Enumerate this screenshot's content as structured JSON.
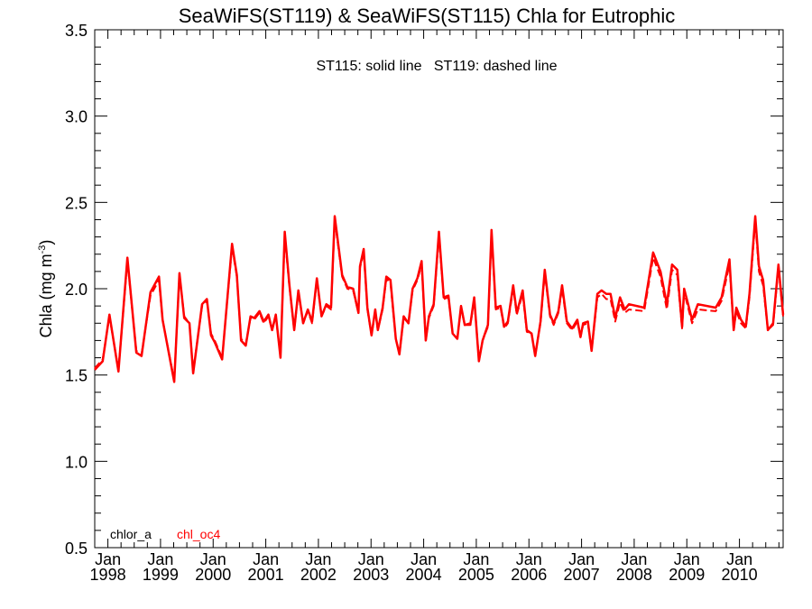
{
  "chart_data": {
    "type": "line",
    "title": "SeaWiFS(ST119) & SeaWiFS(ST115)  Chla for Eutrophic",
    "annotation": "ST115: solid line   ST119: dashed line",
    "ylabel": "Chla (mg m",
    "ylabel_superscript": "-3",
    "ylabel_close": ")",
    "ylim": [
      0.5,
      3.5
    ],
    "y_ticks": [
      "0.5",
      "1.0",
      "1.5",
      "2.0",
      "2.5",
      "3.0",
      "3.5"
    ],
    "y_tick_values": [
      0.5,
      1.0,
      1.5,
      2.0,
      2.5,
      3.0,
      3.5
    ],
    "xlim": [
      1997.75,
      2010.83
    ],
    "x_ticks": [
      {
        "month": "Jan",
        "year": "1998",
        "value": 1998.0
      },
      {
        "month": "Jan",
        "year": "1999",
        "value": 1999.0
      },
      {
        "month": "Jan",
        "year": "2000",
        "value": 2000.0
      },
      {
        "month": "Jan",
        "year": "2001",
        "value": 2001.0
      },
      {
        "month": "Jan",
        "year": "2002",
        "value": 2002.0
      },
      {
        "month": "Jan",
        "year": "2003",
        "value": 2003.0
      },
      {
        "month": "Jan",
        "year": "2004",
        "value": 2004.0
      },
      {
        "month": "Jan",
        "year": "2005",
        "value": 2005.0
      },
      {
        "month": "Jan",
        "year": "2006",
        "value": 2006.0
      },
      {
        "month": "Jan",
        "year": "2007",
        "value": 2007.0
      },
      {
        "month": "Jan",
        "year": "2008",
        "value": 2008.0
      },
      {
        "month": "Jan",
        "year": "2009",
        "value": 2009.0
      },
      {
        "month": "Jan",
        "year": "2010",
        "value": 2010.0
      }
    ],
    "legend": [
      {
        "label": "chlor_a",
        "color": "#000000"
      },
      {
        "label": "chl_oc4",
        "color": "#ff0000"
      }
    ],
    "series": [
      {
        "name": "ST115 chl_oc4 (solid)",
        "style": "solid",
        "color": "#ff0000",
        "x": [
          1997.75,
          1997.9,
          1998.03,
          1998.2,
          1998.37,
          1998.54,
          1998.64,
          1998.81,
          1998.97,
          1999.04,
          1999.26,
          1999.36,
          1999.45,
          1999.55,
          1999.62,
          1999.79,
          1999.88,
          1999.96,
          2000.03,
          2000.17,
          2000.36,
          2000.45,
          2000.53,
          2000.62,
          2000.71,
          2000.78,
          2000.88,
          2000.96,
          2001.05,
          2001.12,
          2001.19,
          2001.28,
          2001.36,
          2001.45,
          2001.54,
          2001.62,
          2001.71,
          2001.8,
          2001.88,
          2001.97,
          2002.06,
          2002.15,
          2002.24,
          2002.31,
          2002.45,
          2002.55,
          2002.66,
          2002.76,
          2002.79,
          2002.86,
          2002.93,
          2003.01,
          2003.08,
          2003.13,
          2003.22,
          2003.29,
          2003.37,
          2003.47,
          2003.54,
          2003.62,
          2003.71,
          2003.79,
          2003.88,
          2003.96,
          2004.04,
          2004.1,
          2004.19,
          2004.29,
          2004.38,
          2004.47,
          2004.55,
          2004.64,
          2004.71,
          2004.78,
          2004.89,
          2004.96,
          2005.05,
          2005.12,
          2005.22,
          2005.29,
          2005.37,
          2005.46,
          2005.53,
          2005.6,
          2005.7,
          2005.77,
          2005.88,
          2005.96,
          2006.05,
          2006.12,
          2006.22,
          2006.3,
          2006.4,
          2006.47,
          2006.56,
          2006.63,
          2006.72,
          2006.82,
          2006.92,
          2006.98,
          2007.03,
          2007.12,
          2007.19,
          2007.3,
          2007.38,
          2007.47,
          2007.55,
          2007.64,
          2007.73,
          2007.82,
          2007.9,
          2008.19,
          2008.36,
          2008.5,
          2008.62,
          2008.72,
          2008.82,
          2008.91,
          2008.95,
          2009.1,
          2009.21,
          2009.55,
          2009.66,
          2009.81,
          2009.89,
          2009.94,
          2010.03,
          2010.12,
          2010.19,
          2010.3,
          2010.37,
          2010.45,
          2010.54,
          2010.64,
          2010.74,
          2010.83
        ],
        "y": [
          1.53,
          1.58,
          1.85,
          1.52,
          2.18,
          1.63,
          1.61,
          1.98,
          2.07,
          1.82,
          1.46,
          2.09,
          1.83,
          1.8,
          1.51,
          1.91,
          1.94,
          1.73,
          1.69,
          1.59,
          2.26,
          2.08,
          1.7,
          1.67,
          1.84,
          1.83,
          1.87,
          1.81,
          1.85,
          1.76,
          1.85,
          1.6,
          2.33,
          2.02,
          1.76,
          1.99,
          1.8,
          1.88,
          1.81,
          2.06,
          1.84,
          1.91,
          1.89,
          2.42,
          2.08,
          2.01,
          2.0,
          1.86,
          2.13,
          2.23,
          1.89,
          1.73,
          1.88,
          1.76,
          1.89,
          2.07,
          2.05,
          1.71,
          1.62,
          1.84,
          1.8,
          2.0,
          2.06,
          2.16,
          1.7,
          1.84,
          1.91,
          2.33,
          1.95,
          1.96,
          1.74,
          1.71,
          1.9,
          1.79,
          1.8,
          1.95,
          1.58,
          1.7,
          1.79,
          2.34,
          1.89,
          1.9,
          1.78,
          1.81,
          2.02,
          1.86,
          1.99,
          1.76,
          1.74,
          1.61,
          1.81,
          2.11,
          1.85,
          1.8,
          1.87,
          2.02,
          1.81,
          1.77,
          1.82,
          1.72,
          1.8,
          1.81,
          1.64,
          1.97,
          1.99,
          1.97,
          1.97,
          1.83,
          1.95,
          1.88,
          1.91,
          1.89,
          2.21,
          2.1,
          1.91,
          2.14,
          2.11,
          1.78,
          2.0,
          1.82,
          1.91,
          1.89,
          1.95,
          2.17,
          1.76,
          1.89,
          1.82,
          1.78,
          1.97,
          2.42,
          2.13,
          2.05,
          1.76,
          1.8,
          2.14,
          1.85
        ]
      },
      {
        "name": "ST119 chl_oc4 (dashed)",
        "style": "dashed",
        "color": "#ff0000",
        "x": [
          1997.75,
          1997.9,
          1998.03,
          1998.2,
          1998.37,
          1998.54,
          1998.64,
          1998.81,
          1998.97,
          1999.04,
          1999.26,
          1999.36,
          1999.45,
          1999.55,
          1999.62,
          1999.79,
          1999.88,
          1999.96,
          2000.03,
          2000.17,
          2000.36,
          2000.45,
          2000.53,
          2000.62,
          2000.71,
          2000.78,
          2000.88,
          2000.96,
          2001.05,
          2001.12,
          2001.19,
          2001.28,
          2001.36,
          2001.45,
          2001.54,
          2001.62,
          2001.71,
          2001.8,
          2001.88,
          2001.97,
          2002.06,
          2002.15,
          2002.24,
          2002.31,
          2002.45,
          2002.55,
          2002.66,
          2002.76,
          2002.79,
          2002.86,
          2002.93,
          2003.01,
          2003.08,
          2003.13,
          2003.22,
          2003.29,
          2003.37,
          2003.47,
          2003.54,
          2003.62,
          2003.71,
          2003.79,
          2003.88,
          2003.96,
          2004.04,
          2004.1,
          2004.19,
          2004.29,
          2004.38,
          2004.47,
          2004.55,
          2004.64,
          2004.71,
          2004.78,
          2004.89,
          2004.96,
          2005.05,
          2005.12,
          2005.22,
          2005.29,
          2005.37,
          2005.46,
          2005.53,
          2005.6,
          2005.7,
          2005.77,
          2005.88,
          2005.96,
          2006.05,
          2006.12,
          2006.22,
          2006.3,
          2006.4,
          2006.47,
          2006.56,
          2006.63,
          2006.72,
          2006.82,
          2006.92,
          2006.98,
          2007.03,
          2007.12,
          2007.19,
          2007.3,
          2007.38,
          2007.47,
          2007.55,
          2007.64,
          2007.73,
          2007.82,
          2007.9,
          2008.19,
          2008.36,
          2008.5,
          2008.62,
          2008.72,
          2008.82,
          2008.91,
          2008.95,
          2009.1,
          2009.21,
          2009.55,
          2009.66,
          2009.81,
          2009.89,
          2009.94,
          2010.03,
          2010.12,
          2010.19,
          2010.3,
          2010.37,
          2010.45,
          2010.54,
          2010.64,
          2010.74,
          2010.83
        ],
        "y": [
          1.54,
          1.59,
          1.84,
          1.53,
          2.16,
          1.64,
          1.62,
          1.96,
          2.05,
          1.82,
          1.47,
          2.08,
          1.84,
          1.8,
          1.52,
          1.9,
          1.93,
          1.74,
          1.7,
          1.6,
          2.24,
          2.07,
          1.71,
          1.68,
          1.83,
          1.82,
          1.86,
          1.8,
          1.84,
          1.76,
          1.84,
          1.61,
          2.31,
          2.01,
          1.76,
          1.98,
          1.8,
          1.87,
          1.8,
          2.05,
          1.84,
          1.9,
          1.88,
          2.4,
          2.07,
          2.0,
          1.99,
          1.86,
          2.12,
          2.21,
          1.88,
          1.73,
          1.87,
          1.76,
          1.88,
          2.06,
          2.03,
          1.71,
          1.62,
          1.83,
          1.8,
          1.99,
          2.05,
          2.14,
          1.7,
          1.83,
          1.9,
          2.31,
          1.94,
          1.95,
          1.74,
          1.71,
          1.89,
          1.79,
          1.79,
          1.94,
          1.59,
          1.7,
          1.78,
          2.32,
          1.88,
          1.89,
          1.77,
          1.8,
          2.0,
          1.85,
          1.97,
          1.75,
          1.74,
          1.62,
          1.8,
          2.09,
          1.84,
          1.79,
          1.86,
          2.0,
          1.8,
          1.76,
          1.81,
          1.72,
          1.79,
          1.8,
          1.64,
          1.95,
          1.97,
          1.94,
          1.94,
          1.81,
          1.92,
          1.86,
          1.88,
          1.87,
          2.18,
          2.07,
          1.88,
          2.11,
          2.08,
          1.77,
          1.98,
          1.8,
          1.88,
          1.87,
          1.93,
          2.14,
          1.76,
          1.87,
          1.8,
          1.77,
          1.95,
          2.39,
          2.1,
          2.02,
          1.76,
          1.79,
          2.12,
          1.84
        ]
      }
    ]
  }
}
